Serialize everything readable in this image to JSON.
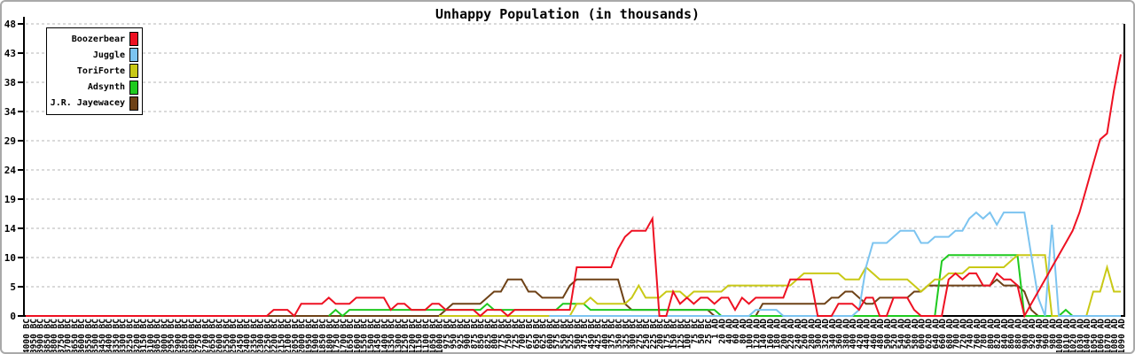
{
  "title": "Unhappy Population (in thousands)",
  "chart_data": {
    "type": "line",
    "title": "Unhappy Population (in thousands)",
    "xlabel": "",
    "ylabel": "",
    "ylim": [
      0,
      48
    ],
    "grid": "dashed-horizontal",
    "legend_position": "top-left",
    "y_tick_labels": [
      "0",
      "5",
      "10",
      "14",
      "19",
      "24",
      "29",
      "34",
      "38",
      "43",
      "48"
    ],
    "x_labels": [
      "4000 BC",
      "3950 BC",
      "3900 BC",
      "3850 BC",
      "3800 BC",
      "3750 BC",
      "3700 BC",
      "3650 BC",
      "3600 BC",
      "3550 BC",
      "3500 BC",
      "3450 BC",
      "3400 BC",
      "3350 BC",
      "3300 BC",
      "3250 BC",
      "3200 BC",
      "3150 BC",
      "3100 BC",
      "3050 BC",
      "3000 BC",
      "2950 BC",
      "2900 BC",
      "2850 BC",
      "2800 BC",
      "2750 BC",
      "2700 BC",
      "2650 BC",
      "2600 BC",
      "2550 BC",
      "2500 BC",
      "2450 BC",
      "2400 BC",
      "2350 BC",
      "2300 BC",
      "2250 BC",
      "2200 BC",
      "2150 BC",
      "2100 BC",
      "2050 BC",
      "2000 BC",
      "1950 BC",
      "1900 BC",
      "1850 BC",
      "1800 BC",
      "1750 BC",
      "1700 BC",
      "1650 BC",
      "1600 BC",
      "1550 BC",
      "1500 BC",
      "1450 BC",
      "1400 BC",
      "1350 BC",
      "1300 BC",
      "1250 BC",
      "1200 BC",
      "1150 BC",
      "1100 BC",
      "1050 BC",
      "1000 BC",
      "975 BC",
      "950 BC",
      "925 BC",
      "900 BC",
      "875 BC",
      "850 BC",
      "825 BC",
      "800 BC",
      "775 BC",
      "750 BC",
      "725 BC",
      "700 BC",
      "675 BC",
      "650 BC",
      "625 BC",
      "600 BC",
      "575 BC",
      "550 BC",
      "525 BC",
      "500 BC",
      "475 BC",
      "450 BC",
      "425 BC",
      "400 BC",
      "375 BC",
      "350 BC",
      "325 BC",
      "300 BC",
      "275 BC",
      "250 BC",
      "225 BC",
      "200 BC",
      "175 BC",
      "150 BC",
      "125 BC",
      "100 BC",
      "75 BC",
      "50 BC",
      "25 BC",
      "1 AD",
      "20 AD",
      "40 AD",
      "60 AD",
      "80 AD",
      "100 AD",
      "120 AD",
      "140 AD",
      "160 AD",
      "180 AD",
      "200 AD",
      "220 AD",
      "240 AD",
      "260 AD",
      "280 AD",
      "300 AD",
      "320 AD",
      "340 AD",
      "360 AD",
      "380 AD",
      "400 AD",
      "420 AD",
      "440 AD",
      "460 AD",
      "480 AD",
      "500 AD",
      "520 AD",
      "540 AD",
      "560 AD",
      "580 AD",
      "600 AD",
      "620 AD",
      "640 AD",
      "660 AD",
      "680 AD",
      "700 AD",
      "720 AD",
      "740 AD",
      "760 AD",
      "780 AD",
      "800 AD",
      "820 AD",
      "840 AD",
      "860 AD",
      "880 AD",
      "900 AD",
      "920 AD",
      "940 AD",
      "960 AD",
      "980 AD",
      "1000 AD",
      "1010 AD",
      "1020 AD",
      "1030 AD",
      "1040 AD",
      "1050 AD",
      "1060 AD",
      "1070 AD",
      "1080 AD",
      "1090 AD"
    ],
    "series": [
      {
        "name": "Boozerbear",
        "color": "#ee1122",
        "values": [
          0,
          0,
          0,
          0,
          0,
          0,
          0,
          0,
          0,
          0,
          0,
          0,
          0,
          0,
          0,
          0,
          0,
          0,
          0,
          0,
          0,
          0,
          0,
          0,
          0,
          0,
          0,
          0,
          0,
          0,
          0,
          0,
          0,
          0,
          0,
          0,
          1,
          1,
          1,
          0,
          2,
          2,
          2,
          2,
          3,
          2,
          2,
          2,
          3,
          3,
          3,
          3,
          3,
          1,
          2,
          2,
          1,
          1,
          1,
          2,
          2,
          1,
          1,
          1,
          1,
          1,
          0,
          1,
          1,
          1,
          0,
          1,
          1,
          1,
          1,
          1,
          1,
          1,
          1,
          1,
          8,
          8,
          8,
          8,
          8,
          8,
          11,
          13,
          14,
          14,
          14,
          16,
          0,
          0,
          4,
          2,
          3,
          2,
          3,
          3,
          2,
          3,
          3,
          1,
          3,
          2,
          3,
          3,
          3,
          3,
          3,
          6,
          6,
          6,
          6,
          0,
          0,
          0,
          2,
          2,
          2,
          1,
          3,
          3,
          0,
          0,
          3,
          3,
          3,
          1,
          0,
          0,
          0,
          0,
          6,
          7,
          6,
          7,
          7,
          5,
          5,
          7,
          6,
          6,
          5,
          0,
          2,
          4,
          6,
          8,
          10,
          12,
          14,
          17,
          21,
          25,
          29,
          30,
          37,
          43
        ]
      },
      {
        "name": "Juggle",
        "color": "#7cc4f0",
        "values": [
          null,
          null,
          null,
          null,
          null,
          null,
          null,
          null,
          null,
          null,
          null,
          null,
          null,
          null,
          null,
          null,
          null,
          null,
          null,
          null,
          null,
          null,
          null,
          null,
          null,
          null,
          null,
          null,
          null,
          null,
          null,
          null,
          null,
          null,
          null,
          null,
          null,
          null,
          null,
          null,
          null,
          null,
          null,
          null,
          null,
          null,
          null,
          null,
          null,
          null,
          null,
          null,
          null,
          null,
          null,
          null,
          null,
          null,
          null,
          null,
          null,
          null,
          null,
          null,
          null,
          null,
          null,
          null,
          null,
          null,
          null,
          null,
          null,
          null,
          null,
          null,
          0,
          0,
          0,
          0,
          0,
          0,
          0,
          0,
          0,
          0,
          0,
          0,
          0,
          0,
          0,
          0,
          0,
          0,
          0,
          0,
          0,
          0,
          0,
          0,
          0,
          0,
          0,
          0,
          0,
          0,
          1,
          1,
          1,
          1,
          0,
          0,
          0,
          0,
          0,
          0,
          0,
          0,
          0,
          0,
          0,
          1,
          8,
          12,
          12,
          12,
          13,
          14,
          14,
          14,
          12,
          12,
          13,
          13,
          13,
          14,
          14,
          16,
          17,
          16,
          17,
          15,
          17,
          17,
          17,
          17,
          10,
          3,
          0,
          15,
          0,
          0,
          0,
          0,
          0,
          0,
          0,
          0,
          0,
          0
        ]
      },
      {
        "name": "ToriForte",
        "color": "#c9c916",
        "values": [
          null,
          null,
          null,
          null,
          null,
          null,
          null,
          null,
          null,
          null,
          null,
          null,
          null,
          null,
          null,
          null,
          null,
          null,
          null,
          null,
          null,
          null,
          null,
          null,
          null,
          null,
          null,
          null,
          null,
          null,
          null,
          null,
          null,
          null,
          null,
          null,
          null,
          null,
          null,
          null,
          null,
          null,
          null,
          null,
          null,
          null,
          null,
          null,
          null,
          null,
          null,
          null,
          null,
          null,
          null,
          null,
          null,
          null,
          null,
          null,
          0,
          0,
          0,
          0,
          0,
          0,
          0,
          0,
          0,
          0,
          0,
          0,
          0,
          0,
          0,
          0,
          0,
          0,
          0,
          0,
          2,
          2,
          3,
          2,
          2,
          2,
          2,
          2,
          3,
          5,
          3,
          3,
          3,
          4,
          4,
          4,
          3,
          4,
          4,
          4,
          4,
          4,
          5,
          5,
          5,
          5,
          5,
          5,
          5,
          5,
          5,
          5,
          6,
          7,
          7,
          7,
          7,
          7,
          7,
          6,
          6,
          6,
          8,
          7,
          6,
          6,
          6,
          6,
          6,
          5,
          4,
          5,
          6,
          6,
          7,
          7,
          7,
          8,
          8,
          8,
          8,
          8,
          8,
          9,
          10,
          10,
          10,
          10,
          10,
          0,
          0,
          0,
          0,
          0,
          0,
          4,
          4,
          8,
          4,
          4
        ]
      },
      {
        "name": "Adsynth",
        "color": "#1fca1f",
        "values": [
          null,
          null,
          null,
          null,
          null,
          null,
          null,
          null,
          null,
          null,
          null,
          null,
          null,
          null,
          null,
          null,
          null,
          null,
          null,
          null,
          null,
          null,
          null,
          null,
          null,
          null,
          null,
          null,
          null,
          null,
          null,
          null,
          null,
          null,
          null,
          null,
          null,
          null,
          null,
          null,
          null,
          null,
          null,
          null,
          0,
          1,
          0,
          1,
          1,
          1,
          1,
          1,
          1,
          1,
          1,
          1,
          1,
          1,
          1,
          1,
          1,
          1,
          1,
          1,
          1,
          1,
          1,
          2,
          1,
          1,
          1,
          1,
          1,
          1,
          1,
          1,
          1,
          1,
          2,
          2,
          2,
          2,
          1,
          1,
          1,
          1,
          1,
          1,
          1,
          1,
          1,
          1,
          1,
          1,
          1,
          1,
          1,
          1,
          1,
          1,
          1,
          0,
          0,
          0,
          0,
          0,
          0,
          0,
          0,
          0,
          0,
          0,
          0,
          0,
          0,
          0,
          0,
          0,
          0,
          0,
          0,
          0,
          0,
          0,
          0,
          0,
          0,
          0,
          0,
          0,
          0,
          0,
          0,
          9,
          10,
          10,
          10,
          10,
          10,
          10,
          10,
          10,
          10,
          10,
          10,
          0,
          0,
          0,
          0,
          0,
          0,
          1,
          0,
          0,
          0,
          0,
          0,
          0,
          0,
          0
        ]
      },
      {
        "name": "J.R. Jayewacey",
        "color": "#6e4217",
        "values": [
          0,
          0,
          0,
          0,
          0,
          0,
          0,
          0,
          0,
          0,
          0,
          0,
          0,
          0,
          0,
          0,
          0,
          0,
          0,
          0,
          0,
          0,
          0,
          0,
          0,
          0,
          0,
          0,
          0,
          0,
          0,
          0,
          0,
          0,
          0,
          0,
          0,
          0,
          0,
          0,
          0,
          0,
          0,
          0,
          0,
          0,
          0,
          0,
          0,
          0,
          0,
          0,
          0,
          0,
          0,
          0,
          0,
          0,
          0,
          0,
          0,
          1,
          2,
          2,
          2,
          2,
          2,
          3,
          4,
          4,
          6,
          6,
          6,
          4,
          4,
          3,
          3,
          3,
          3,
          5,
          6,
          6,
          6,
          6,
          6,
          6,
          6,
          2,
          1,
          1,
          1,
          1,
          1,
          1,
          1,
          1,
          1,
          1,
          1,
          1,
          0,
          0,
          0,
          0,
          0,
          0,
          0,
          2,
          2,
          2,
          2,
          2,
          2,
          2,
          2,
          2,
          2,
          3,
          3,
          4,
          4,
          3,
          2,
          2,
          3,
          3,
          3,
          3,
          3,
          4,
          4,
          5,
          5,
          5,
          5,
          5,
          5,
          5,
          5,
          5,
          5,
          6,
          5,
          5,
          5,
          4,
          1,
          0,
          0,
          0,
          0,
          0,
          0,
          0,
          0,
          0,
          0,
          0,
          0,
          0
        ]
      }
    ]
  }
}
